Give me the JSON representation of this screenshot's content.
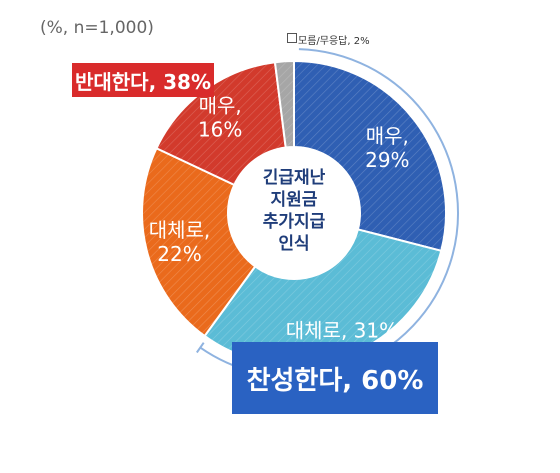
{
  "note": "(%, n=1,000)",
  "center_label": [
    "긴급재난",
    "지원금",
    "추가지급",
    "인식"
  ],
  "dont_know_label": "모름/무응답, 2%",
  "oppose_total_label": "반대한다, 38%",
  "support_total_label": "찬성한다, 60%",
  "colors": {
    "support_strong": "#2f5fb3",
    "support_somewhat": "#5bbcd6",
    "oppose_somewhat": "#ea6a1c",
    "oppose_strong": "#d23a2c",
    "dont_know": "#a6a6a6",
    "oppose_box": "#d92b2b",
    "support_box": "#2a62c2"
  },
  "chart_data": {
    "type": "pie",
    "title": "",
    "slices": [
      {
        "name": "매우",
        "group": "찬성",
        "value": 29,
        "label_line1": "매우,",
        "label_line2": "29%",
        "color": "#2f5fb3"
      },
      {
        "name": "대체로",
        "group": "찬성",
        "value": 31,
        "label_line1": "대체로, 31%",
        "label_line2": "",
        "color": "#5bbcd6"
      },
      {
        "name": "대체로",
        "group": "반대",
        "value": 22,
        "label_line1": "대체로,",
        "label_line2": "22%",
        "color": "#ea6a1c"
      },
      {
        "name": "매우",
        "group": "반대",
        "value": 16,
        "label_line1": "매우,",
        "label_line2": "16%",
        "color": "#d23a2c"
      },
      {
        "name": "모름/무응답",
        "group": "",
        "value": 2,
        "label_line1": "",
        "label_line2": "",
        "color": "#a6a6a6"
      }
    ],
    "totals": [
      {
        "name": "찬성한다",
        "value": 60
      },
      {
        "name": "반대한다",
        "value": 38
      }
    ],
    "donut": true
  }
}
